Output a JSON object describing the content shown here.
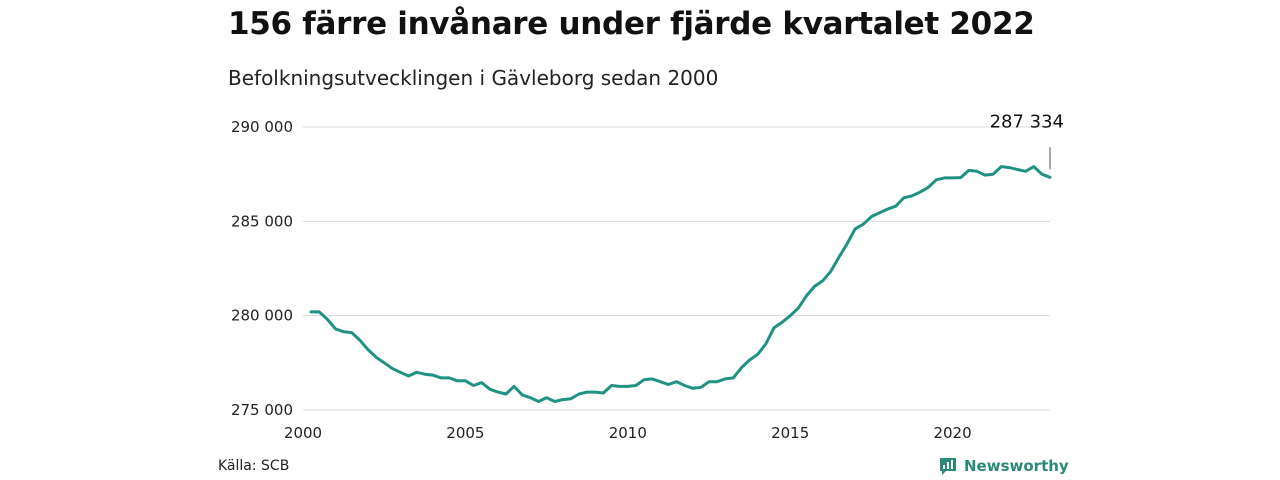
{
  "header": {
    "title": "156 färre invånare under fjärde kvartalet 2022",
    "subtitle": "Befolkningsutvecklingen i Gävleborg sedan 2000"
  },
  "footer": {
    "source": "Källa: SCB",
    "brand": "Newsworthy"
  },
  "colors": {
    "line": "#1f9283",
    "brand": "#2a8a78",
    "grid": "#d9d9d9"
  },
  "icons": {
    "brand_logo": "bar-chart-badge-icon"
  },
  "chart_data": {
    "type": "line",
    "xlim": [
      2000,
      2023
    ],
    "ylim": [
      275000,
      290000
    ],
    "xticks": [
      2000,
      2005,
      2010,
      2015,
      2020
    ],
    "xtick_labels": [
      "2000",
      "2005",
      "2010",
      "2015",
      "2020"
    ],
    "yticks": [
      275000,
      280000,
      285000,
      290000
    ],
    "ytick_labels": [
      "275 000",
      "280 000",
      "285 000",
      "290 000"
    ],
    "grid": true,
    "last_value_label": "287 334",
    "x": [
      2000.25,
      2000.5,
      2000.75,
      2001.0,
      2001.25,
      2001.5,
      2001.75,
      2002.0,
      2002.25,
      2002.5,
      2002.75,
      2003.0,
      2003.25,
      2003.5,
      2003.75,
      2004.0,
      2004.25,
      2004.5,
      2004.75,
      2005.0,
      2005.25,
      2005.5,
      2005.75,
      2006.0,
      2006.25,
      2006.5,
      2006.75,
      2007.0,
      2007.25,
      2007.5,
      2007.75,
      2008.0,
      2008.25,
      2008.5,
      2008.75,
      2009.0,
      2009.25,
      2009.5,
      2009.75,
      2010.0,
      2010.25,
      2010.5,
      2010.75,
      2011.0,
      2011.25,
      2011.5,
      2011.75,
      2012.0,
      2012.25,
      2012.5,
      2012.75,
      2013.0,
      2013.25,
      2013.5,
      2013.75,
      2014.0,
      2014.25,
      2014.5,
      2014.75,
      2015.0,
      2015.25,
      2015.5,
      2015.75,
      2016.0,
      2016.25,
      2016.5,
      2016.75,
      2017.0,
      2017.25,
      2017.5,
      2017.75,
      2018.0,
      2018.25,
      2018.5,
      2018.75,
      2019.0,
      2019.25,
      2019.5,
      2019.75,
      2020.0,
      2020.25,
      2020.5,
      2020.75,
      2021.0,
      2021.25,
      2021.5,
      2021.75,
      2022.0,
      2022.25,
      2022.5,
      2022.75,
      2023.0
    ],
    "y": [
      280200,
      280200,
      279800,
      279300,
      279150,
      279100,
      278700,
      278200,
      277800,
      277500,
      277200,
      277000,
      276800,
      277000,
      276900,
      276850,
      276700,
      276700,
      276550,
      276550,
      276300,
      276450,
      276100,
      275950,
      275850,
      276250,
      275800,
      275650,
      275450,
      275650,
      275450,
      275550,
      275600,
      275850,
      275950,
      275950,
      275900,
      276300,
      276250,
      276250,
      276300,
      276600,
      276650,
      276500,
      276350,
      276500,
      276300,
      276150,
      276200,
      276500,
      276500,
      276650,
      276700,
      277250,
      277650,
      277950,
      278500,
      279350,
      279650,
      280000,
      280400,
      281050,
      281550,
      281850,
      282350,
      283100,
      283800,
      284600,
      284850,
      285250,
      285450,
      285650,
      285800,
      286250,
      286350,
      286550,
      286800,
      287200,
      287300,
      287300,
      287320,
      287700,
      287650,
      287450,
      287500,
      287900,
      287850,
      287750,
      287650,
      287900,
      287500,
      287334
    ]
  }
}
